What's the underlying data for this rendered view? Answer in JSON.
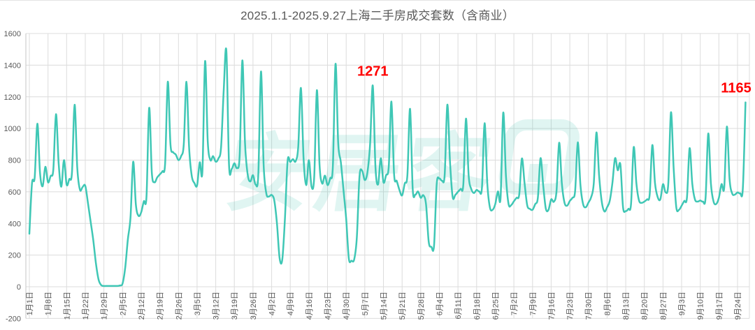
{
  "title": "2025.1.1-2025.9.27上海二手房成交套数（含商业）",
  "title_color": "#595959",
  "watermark": {
    "text": "安居客",
    "color": "#2FBFA8"
  },
  "chart_data": {
    "type": "line",
    "title": "2025.1.1-2025.9.27上海二手房成交套数（含商业）",
    "series_name": "每日成交套数",
    "x_tick_interval_days": 7,
    "x_tick_labels": [
      "1月1日",
      "1月8日",
      "1月15日",
      "1月22日",
      "1月29日",
      "2月5日",
      "2月12日",
      "2月19日",
      "2月26日",
      "3月5日",
      "3月12日",
      "3月19日",
      "3月26日",
      "4月2日",
      "4月9日",
      "4月16日",
      "4月23日",
      "4月30日",
      "5月7日",
      "5月14日",
      "5月21日",
      "5月28日",
      "6月4日",
      "6月11日",
      "6月18日",
      "6月25日",
      "7月2日",
      "7月9日",
      "7月16日",
      "7月23日",
      "7月30日",
      "8月6日",
      "8月13日",
      "8月20日",
      "8月27日",
      "9月3日",
      "9月10日",
      "9月17日",
      "9月24日"
    ],
    "values": [
      335,
      655,
      690,
      1030,
      720,
      635,
      758,
      660,
      700,
      740,
      1090,
      780,
      632,
      800,
      645,
      680,
      720,
      1150,
      750,
      613,
      630,
      638,
      530,
      413,
      295,
      148,
      45,
      10,
      5,
      5,
      5,
      5,
      5,
      5,
      8,
      20,
      120,
      300,
      440,
      790,
      520,
      448,
      470,
      540,
      570,
      1130,
      720,
      660,
      690,
      710,
      730,
      780,
      1295,
      900,
      850,
      835,
      800,
      825,
      900,
      1295,
      880,
      700,
      655,
      640,
      786,
      730,
      1425,
      920,
      800,
      825,
      790,
      810,
      880,
      1240,
      1490,
      770,
      745,
      780,
      750,
      830,
      1430,
      910,
      710,
      665,
      705,
      645,
      710,
      1360,
      770,
      590,
      570,
      580,
      545,
      400,
      180,
      172,
      430,
      795,
      788,
      806,
      792,
      885,
      1256,
      810,
      642,
      800,
      632,
      695,
      1242,
      770,
      652,
      702,
      642,
      685,
      760,
      1408,
      910,
      787,
      610,
      430,
      178,
      165,
      172,
      310,
      696,
      733,
      674,
      725,
      905,
      1271,
      757,
      647,
      812,
      660,
      705,
      760,
      1170,
      711,
      668,
      612,
      577,
      652,
      705,
      1124,
      616,
      582,
      602,
      562,
      578,
      520,
      285,
      252,
      258,
      648,
      684,
      670,
      706,
      1150,
      790,
      567,
      580,
      600,
      618,
      645,
      1062,
      705,
      617,
      592,
      612,
      602,
      625,
      1033,
      655,
      500,
      486,
      522,
      602,
      562,
      1100,
      705,
      522,
      516,
      540,
      562,
      582,
      810,
      655,
      515,
      492,
      486,
      522,
      562,
      812,
      642,
      493,
      486,
      552,
      537,
      602,
      910,
      655,
      532,
      512,
      542,
      562,
      605,
      912,
      642,
      522,
      502,
      532,
      565,
      652,
      975,
      705,
      538,
      476,
      502,
      542,
      655,
      812,
      736,
      772,
      502,
      478,
      492,
      522,
      882,
      655,
      545,
      530,
      538,
      552,
      582,
      895,
      655,
      567,
      552,
      648,
      596,
      652,
      1102,
      752,
      502,
      486,
      512,
      542,
      562,
      875,
      652,
      552,
      538,
      545,
      538,
      562,
      968,
      652,
      538,
      523,
      562,
      648,
      626,
      1012,
      682,
      589,
      582,
      596,
      590,
      622,
      1165
    ],
    "ylim": [
      -200,
      1600
    ],
    "y_ticks": [
      1600,
      1400,
      1200,
      1000,
      800,
      600,
      400,
      200,
      0,
      -200
    ],
    "grid": true,
    "smooth": true,
    "line_color": "#3FC7B5",
    "grid_color": "#DCDCDC",
    "axis_line_color": "#C6C6C6",
    "axis_text_color": "#595959",
    "annotation_color": "#FF0000",
    "annotations": [
      {
        "text": "1271",
        "day_index": 129,
        "value": 1271
      },
      {
        "text": "1165",
        "day_index": 269,
        "value": 1165
      }
    ],
    "legend": "none"
  }
}
